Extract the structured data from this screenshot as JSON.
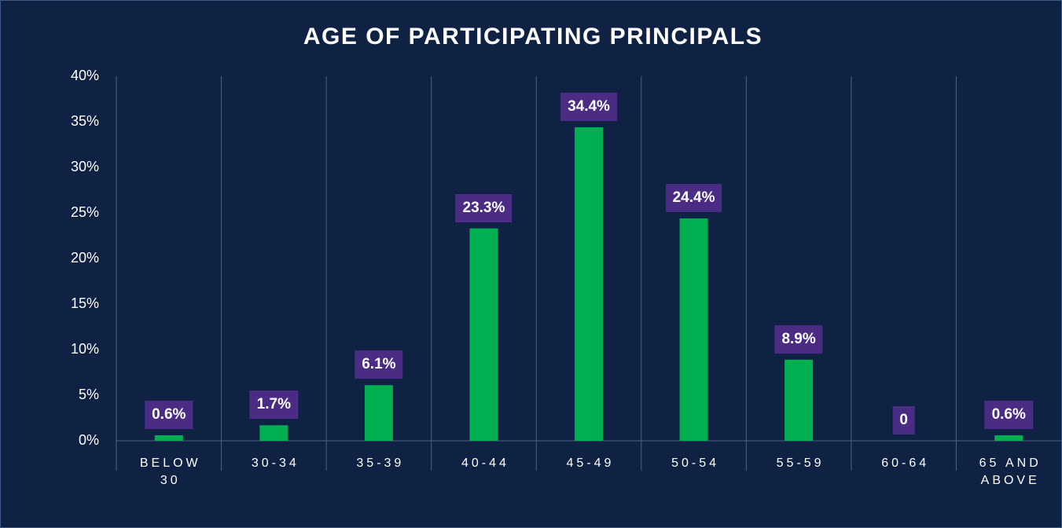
{
  "chart_data": {
    "type": "bar",
    "title": "AGE OF PARTICIPATING PRINCIPALS",
    "categories": [
      "BELOW 30",
      "30-34",
      "35-39",
      "40-44",
      "45-49",
      "50-54",
      "55-59",
      "60-64",
      "65 AND ABOVE"
    ],
    "values": [
      0.6,
      1.7,
      6.1,
      23.3,
      34.4,
      24.4,
      8.9,
      0,
      0.6
    ],
    "value_labels": [
      "0.6%",
      "1.7%",
      "6.1%",
      "23.3%",
      "34.4%",
      "24.4%",
      "8.9%",
      "0",
      "0.6%"
    ],
    "color": "#00b050",
    "label_color": "#4b2c85",
    "ylim": [
      0,
      40
    ],
    "yticks": [
      {
        "value": 0,
        "label": "0%"
      },
      {
        "value": 5,
        "label": "5%"
      },
      {
        "value": 10,
        "label": "10%"
      },
      {
        "value": 15,
        "label": "15%"
      },
      {
        "value": 20,
        "label": "20%"
      },
      {
        "value": 25,
        "label": "25%"
      },
      {
        "value": 30,
        "label": "30%"
      },
      {
        "value": 35,
        "label": "35%"
      },
      {
        "value": 40,
        "label": "40%"
      }
    ],
    "grid": false
  }
}
